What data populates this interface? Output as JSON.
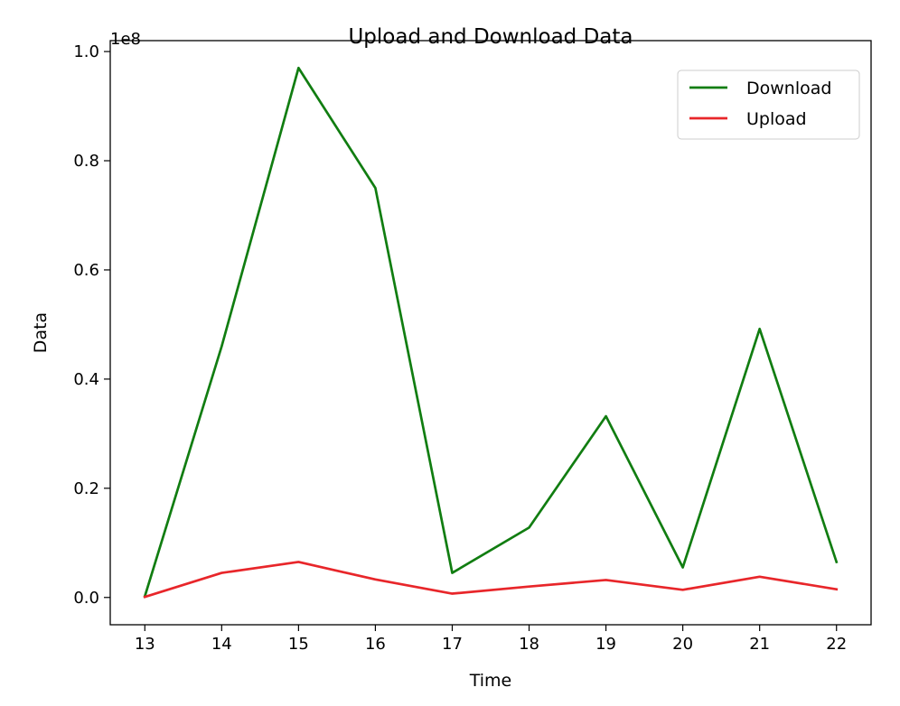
{
  "chart_data": {
    "type": "line",
    "title": "Upload and Download Data",
    "xlabel": "Time",
    "ylabel": "Data",
    "y_offset_text": "1e8",
    "x": [
      13,
      14,
      15,
      16,
      17,
      18,
      19,
      20,
      21,
      22
    ],
    "x_ticks": [
      13,
      14,
      15,
      16,
      17,
      18,
      19,
      20,
      21,
      22
    ],
    "y_ticks": [
      0.0,
      0.2,
      0.4,
      0.6,
      0.8,
      1.0
    ],
    "y_tick_labels": [
      "0.0",
      "0.2",
      "0.4",
      "0.6",
      "0.8",
      "1.0"
    ],
    "y_scale": 100000000,
    "xlim": [
      12.55,
      22.45
    ],
    "ylim": [
      -5000000,
      102000000
    ],
    "grid": false,
    "legend_position": "upper right",
    "series": [
      {
        "name": "Download",
        "color": "#117d11",
        "values": [
          200000,
          46000000,
          97000000,
          75000000,
          4500000,
          12800000,
          33200000,
          5500000,
          49200000,
          6500000
        ]
      },
      {
        "name": "Upload",
        "color": "#e8262a",
        "values": [
          100000,
          4500000,
          6500000,
          3300000,
          700000,
          2000000,
          3200000,
          1400000,
          3800000,
          1500000
        ]
      }
    ]
  }
}
